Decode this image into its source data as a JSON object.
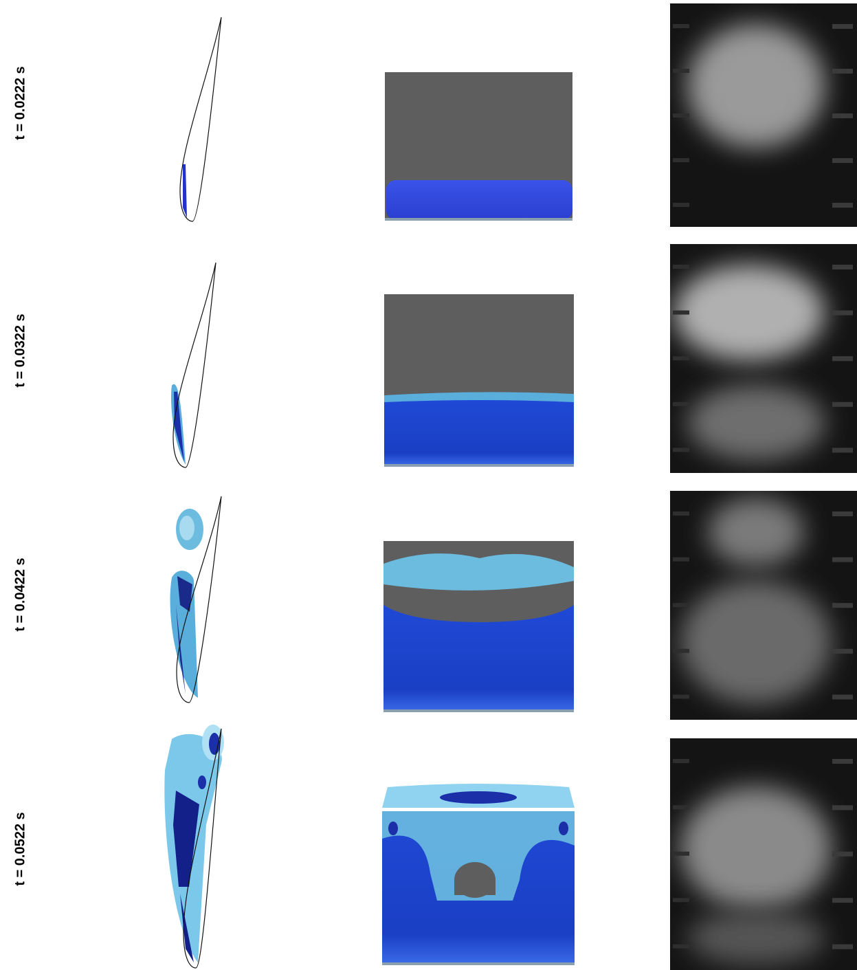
{
  "rows": [
    {
      "label": "t = 0.0222 s"
    },
    {
      "label": "t = 0.0322 s"
    },
    {
      "label": "t = 0.0422 s"
    },
    {
      "label": "t = 0.0522 s"
    }
  ]
}
